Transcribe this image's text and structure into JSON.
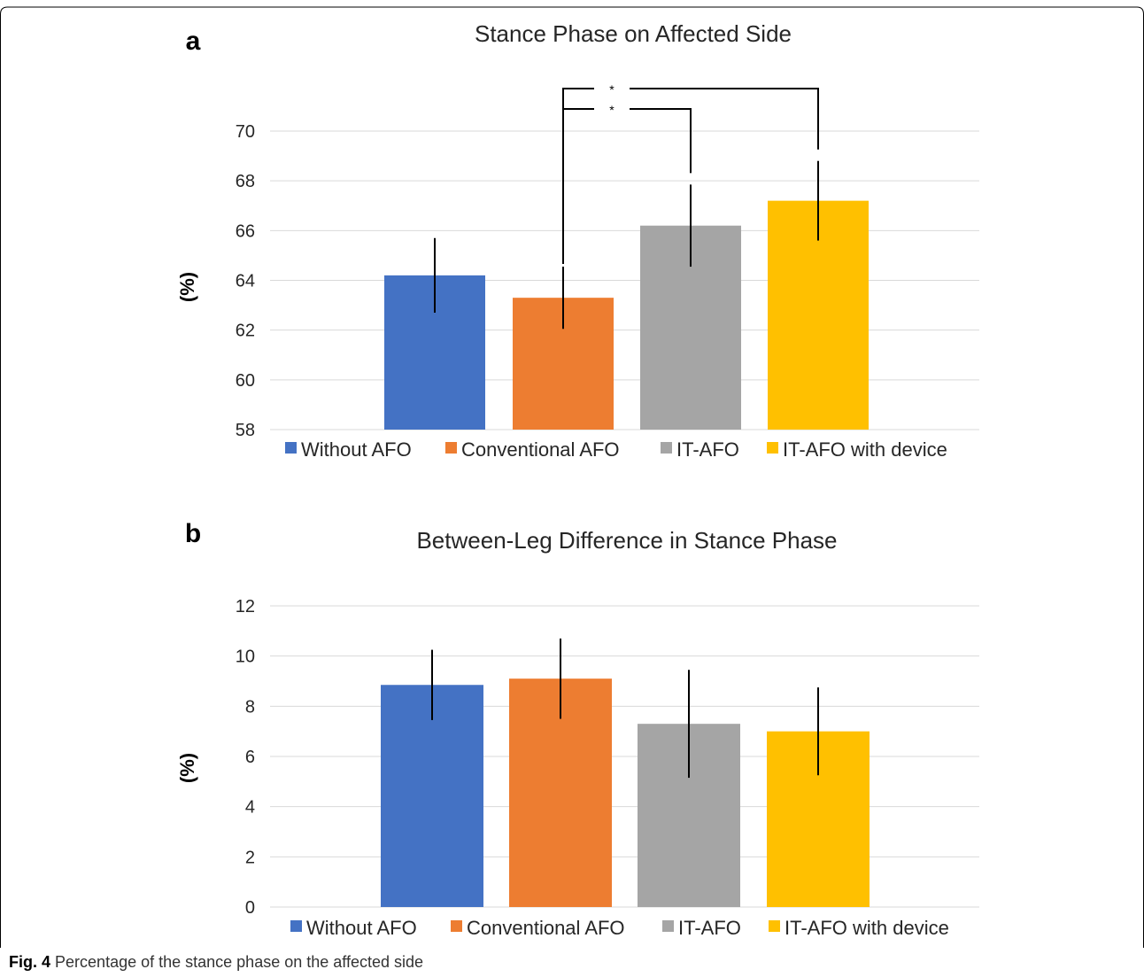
{
  "caption": {
    "label": "Fig. 4",
    "text": "Percentage of the stance phase on the affected side"
  },
  "colors": {
    "series": [
      "#4472C4",
      "#ED7D31",
      "#A5A5A5",
      "#FFC000"
    ],
    "grid": "#D9D9D9",
    "border": "#000000"
  },
  "chart_data": [
    {
      "type": "bar",
      "panel": "a",
      "title": "Stance Phase on Affected Side",
      "ylabel": "(%)",
      "xlabel": "",
      "ylim": [
        58,
        70
      ],
      "yticks": [
        58,
        60,
        62,
        64,
        66,
        68,
        70
      ],
      "grid": true,
      "legend_position": "bottom",
      "categories": [
        "Without AFO",
        "Conventional AFO",
        "IT-AFO",
        "IT-AFO with device"
      ],
      "values": [
        64.2,
        63.3,
        66.2,
        67.2
      ],
      "errors": [
        1.5,
        1.25,
        1.65,
        1.6
      ],
      "significance": [
        {
          "from": 1,
          "to": 2,
          "label": "*"
        },
        {
          "from": 1,
          "to": 3,
          "label": "*"
        }
      ]
    },
    {
      "type": "bar",
      "panel": "b",
      "title": "Between-Leg Difference in Stance Phase",
      "ylabel": "(%)",
      "xlabel": "",
      "ylim": [
        0,
        12
      ],
      "yticks": [
        0,
        2,
        4,
        6,
        8,
        10,
        12
      ],
      "grid": true,
      "legend_position": "bottom",
      "categories": [
        "Without AFO",
        "Conventional AFO",
        "IT-AFO",
        "IT-AFO with device"
      ],
      "values": [
        8.85,
        9.1,
        7.3,
        7.0
      ],
      "errors": [
        1.4,
        1.6,
        2.15,
        1.75
      ],
      "significance": []
    }
  ]
}
